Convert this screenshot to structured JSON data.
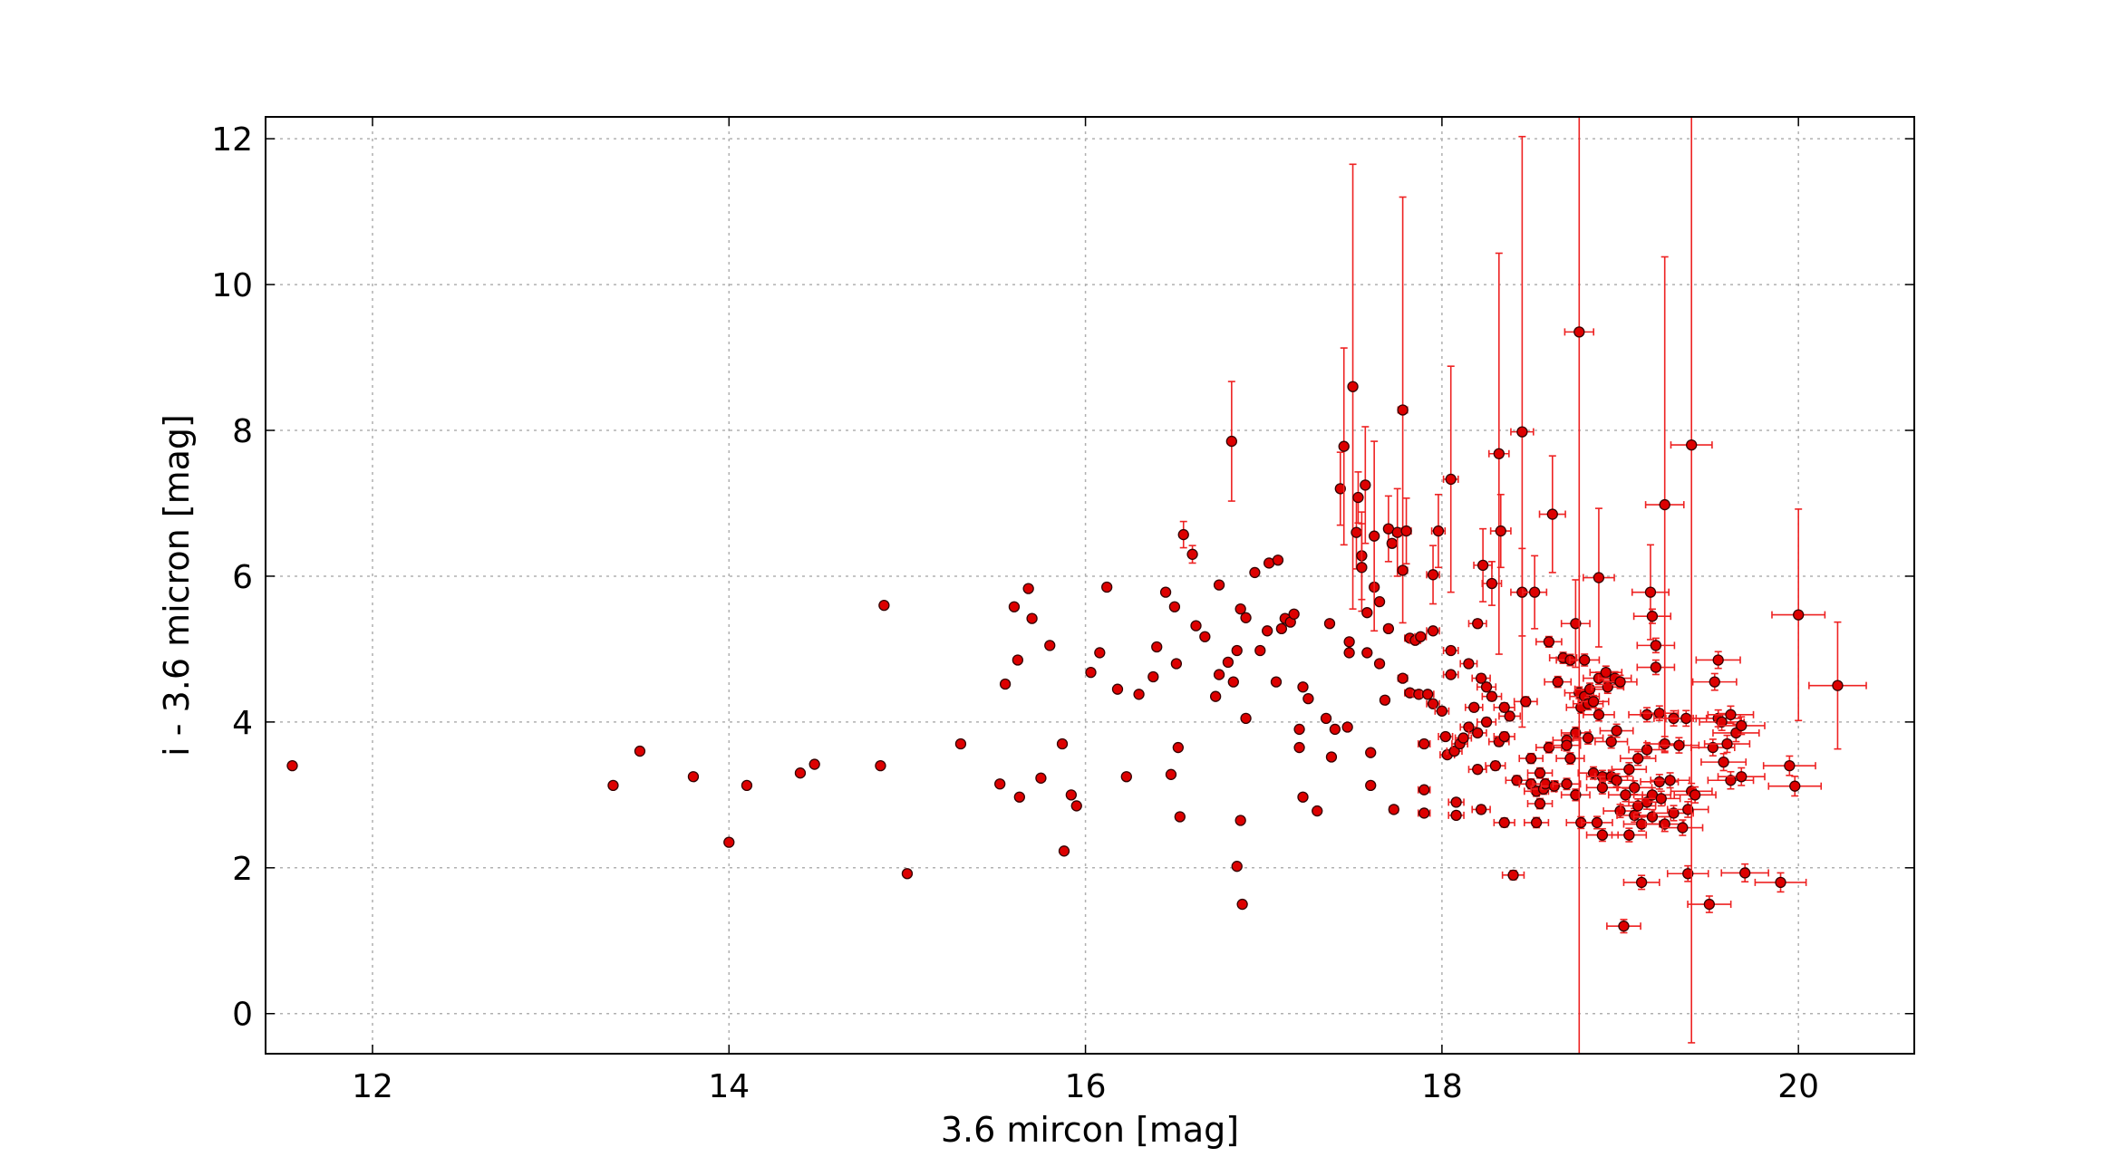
{
  "chart_data": {
    "type": "scatter",
    "title": "",
    "xlabel": "3.6 mircon [mag]",
    "ylabel": "i - 3.6 micron [mag]",
    "xlim": [
      11.4,
      20.65
    ],
    "ylim": [
      -0.55,
      12.3
    ],
    "xticks": [
      12,
      14,
      16,
      18,
      20
    ],
    "yticks": [
      0,
      2,
      4,
      6,
      8,
      10,
      12
    ],
    "xtick_labels": [
      "12",
      "14",
      "16",
      "18",
      "20"
    ],
    "ytick_labels": [
      "0",
      "2",
      "4",
      "6",
      "8",
      "10",
      "12"
    ],
    "grid": true,
    "marker_color": "#dd0000",
    "marker_edge_color": "#330000",
    "errorbar_color": "#ee2222",
    "points": [
      {
        "x": 11.55,
        "y": 3.4
      },
      {
        "x": 13.35,
        "y": 3.13
      },
      {
        "x": 13.5,
        "y": 3.6
      },
      {
        "x": 13.8,
        "y": 3.25
      },
      {
        "x": 14.0,
        "y": 2.35
      },
      {
        "x": 14.1,
        "y": 3.13
      },
      {
        "x": 14.4,
        "y": 3.3
      },
      {
        "x": 14.48,
        "y": 3.42
      },
      {
        "x": 14.85,
        "y": 3.4
      },
      {
        "x": 14.87,
        "y": 5.6
      },
      {
        "x": 15.0,
        "y": 1.92
      },
      {
        "x": 15.3,
        "y": 3.7
      },
      {
        "x": 15.52,
        "y": 3.15
      },
      {
        "x": 15.55,
        "y": 4.52
      },
      {
        "x": 15.6,
        "y": 5.58
      },
      {
        "x": 15.62,
        "y": 4.85
      },
      {
        "x": 15.63,
        "y": 2.97
      },
      {
        "x": 15.68,
        "y": 5.83
      },
      {
        "x": 15.7,
        "y": 5.42
      },
      {
        "x": 15.75,
        "y": 3.23
      },
      {
        "x": 15.8,
        "y": 5.05
      },
      {
        "x": 15.87,
        "y": 3.7
      },
      {
        "x": 15.88,
        "y": 2.23
      },
      {
        "x": 15.92,
        "y": 3.0
      },
      {
        "x": 15.95,
        "y": 2.85
      },
      {
        "x": 16.03,
        "y": 4.68
      },
      {
        "x": 16.08,
        "y": 4.95
      },
      {
        "x": 16.12,
        "y": 5.85
      },
      {
        "x": 16.18,
        "y": 4.45
      },
      {
        "x": 16.23,
        "y": 3.25
      },
      {
        "x": 16.3,
        "y": 4.38
      },
      {
        "x": 16.38,
        "y": 4.62
      },
      {
        "x": 16.4,
        "y": 5.03
      },
      {
        "x": 16.45,
        "y": 5.78
      },
      {
        "x": 16.48,
        "y": 3.28
      },
      {
        "x": 16.5,
        "y": 5.58
      },
      {
        "x": 16.51,
        "y": 4.8
      },
      {
        "x": 16.52,
        "y": 3.65
      },
      {
        "x": 16.53,
        "y": 2.7
      },
      {
        "x": 16.55,
        "y": 6.57,
        "ey": 0.18
      },
      {
        "x": 16.6,
        "y": 6.3,
        "ey": 0.12
      },
      {
        "x": 16.62,
        "y": 5.32
      },
      {
        "x": 16.67,
        "y": 5.17
      },
      {
        "x": 16.73,
        "y": 4.35
      },
      {
        "x": 16.75,
        "y": 5.88
      },
      {
        "x": 16.75,
        "y": 4.65
      },
      {
        "x": 16.8,
        "y": 4.82
      },
      {
        "x": 16.82,
        "y": 7.85,
        "ey": 0.82
      },
      {
        "x": 16.83,
        "y": 4.55
      },
      {
        "x": 16.85,
        "y": 4.98
      },
      {
        "x": 16.85,
        "y": 2.02
      },
      {
        "x": 16.87,
        "y": 2.65
      },
      {
        "x": 16.87,
        "y": 5.55
      },
      {
        "x": 16.88,
        "y": 1.5
      },
      {
        "x": 16.9,
        "y": 5.43
      },
      {
        "x": 16.9,
        "y": 4.05
      },
      {
        "x": 16.95,
        "y": 6.05
      },
      {
        "x": 16.98,
        "y": 4.98
      },
      {
        "x": 17.02,
        "y": 5.25
      },
      {
        "x": 17.03,
        "y": 6.18
      },
      {
        "x": 17.07,
        "y": 4.55
      },
      {
        "x": 17.08,
        "y": 6.22
      },
      {
        "x": 17.1,
        "y": 5.28
      },
      {
        "x": 17.12,
        "y": 5.42
      },
      {
        "x": 17.15,
        "y": 5.37
      },
      {
        "x": 17.17,
        "y": 5.48
      },
      {
        "x": 17.2,
        "y": 3.9
      },
      {
        "x": 17.2,
        "y": 3.65
      },
      {
        "x": 17.22,
        "y": 4.48
      },
      {
        "x": 17.22,
        "y": 2.97
      },
      {
        "x": 17.25,
        "y": 4.32
      },
      {
        "x": 17.3,
        "y": 2.78
      },
      {
        "x": 17.35,
        "y": 4.05
      },
      {
        "x": 17.37,
        "y": 5.35
      },
      {
        "x": 17.38,
        "y": 3.52
      },
      {
        "x": 17.4,
        "y": 3.9
      },
      {
        "x": 17.43,
        "y": 7.2,
        "ey": 0.5
      },
      {
        "x": 17.45,
        "y": 7.78,
        "ey": 1.35
      },
      {
        "x": 17.47,
        "y": 3.93
      },
      {
        "x": 17.48,
        "y": 5.1
      },
      {
        "x": 17.48,
        "y": 4.95
      },
      {
        "x": 17.5,
        "y": 8.6,
        "ey": 3.05
      },
      {
        "x": 17.52,
        "y": 6.6,
        "ey": 0.5
      },
      {
        "x": 17.53,
        "y": 7.08,
        "ey": 0.35
      },
      {
        "x": 17.55,
        "y": 6.28,
        "ey": 0.6
      },
      {
        "x": 17.55,
        "y": 6.12,
        "ey": 0.6
      },
      {
        "x": 17.57,
        "y": 7.25,
        "ey": 0.8
      },
      {
        "x": 17.58,
        "y": 5.5
      },
      {
        "x": 17.58,
        "y": 4.95
      },
      {
        "x": 17.6,
        "y": 3.58
      },
      {
        "x": 17.6,
        "y": 3.13
      },
      {
        "x": 17.62,
        "y": 5.85
      },
      {
        "x": 17.62,
        "y": 6.55,
        "ey": 1.3
      },
      {
        "x": 17.65,
        "y": 5.65
      },
      {
        "x": 17.65,
        "y": 4.8
      },
      {
        "x": 17.68,
        "y": 4.3
      },
      {
        "x": 17.7,
        "y": 6.65,
        "ey": 0.45
      },
      {
        "x": 17.7,
        "y": 5.28
      },
      {
        "x": 17.72,
        "y": 6.45
      },
      {
        "x": 17.73,
        "y": 2.8
      },
      {
        "x": 17.75,
        "y": 6.6,
        "ey": 0.6
      },
      {
        "x": 17.78,
        "y": 8.28,
        "ey": 2.92
      },
      {
        "x": 17.78,
        "y": 6.08
      },
      {
        "x": 17.78,
        "y": 4.6
      },
      {
        "x": 17.8,
        "y": 6.62,
        "ey": 0.45
      },
      {
        "x": 17.82,
        "y": 5.15
      },
      {
        "x": 17.82,
        "y": 4.4
      },
      {
        "x": 17.85,
        "y": 5.12
      },
      {
        "x": 17.87,
        "y": 4.38
      },
      {
        "x": 17.88,
        "y": 5.17
      },
      {
        "x": 17.9,
        "y": 3.7
      },
      {
        "x": 17.9,
        "y": 3.07
      },
      {
        "x": 17.9,
        "y": 2.75
      },
      {
        "x": 17.92,
        "y": 4.38
      },
      {
        "x": 17.95,
        "y": 6.02,
        "ey": 0.4
      },
      {
        "x": 17.95,
        "y": 5.25
      },
      {
        "x": 17.95,
        "y": 4.25
      },
      {
        "x": 17.98,
        "y": 6.62,
        "ey": 0.5
      },
      {
        "x": 18.0,
        "y": 4.15
      },
      {
        "x": 18.02,
        "y": 3.8
      },
      {
        "x": 18.03,
        "y": 3.55
      },
      {
        "x": 18.05,
        "y": 7.33,
        "ey": 1.55
      },
      {
        "x": 18.05,
        "y": 4.98
      },
      {
        "x": 18.05,
        "y": 4.65
      },
      {
        "x": 18.07,
        "y": 3.6
      },
      {
        "x": 18.08,
        "y": 2.9
      },
      {
        "x": 18.08,
        "y": 2.72
      },
      {
        "x": 18.1,
        "y": 3.7
      },
      {
        "x": 18.12,
        "y": 3.78
      },
      {
        "x": 18.15,
        "y": 4.8
      },
      {
        "x": 18.15,
        "y": 3.93
      },
      {
        "x": 18.18,
        "y": 4.2
      },
      {
        "x": 18.2,
        "y": 5.35
      },
      {
        "x": 18.2,
        "y": 3.85
      },
      {
        "x": 18.2,
        "y": 3.35
      },
      {
        "x": 18.22,
        "y": 4.6
      },
      {
        "x": 18.22,
        "y": 2.8
      },
      {
        "x": 18.23,
        "y": 6.15,
        "ey": 0.5
      },
      {
        "x": 18.25,
        "y": 4.48
      },
      {
        "x": 18.25,
        "y": 4.0
      },
      {
        "x": 18.28,
        "y": 5.9,
        "ey": 0.3
      },
      {
        "x": 18.28,
        "y": 4.35
      },
      {
        "x": 18.3,
        "y": 3.4
      },
      {
        "x": 18.32,
        "y": 7.68,
        "ey": 2.75
      },
      {
        "x": 18.32,
        "y": 3.73
      },
      {
        "x": 18.33,
        "y": 6.62,
        "ey": 0.5
      },
      {
        "x": 18.35,
        "y": 4.2
      },
      {
        "x": 18.35,
        "y": 3.8
      },
      {
        "x": 18.35,
        "y": 2.62
      },
      {
        "x": 18.38,
        "y": 4.08
      },
      {
        "x": 18.4,
        "y": 1.9
      },
      {
        "x": 18.42,
        "y": 3.2
      },
      {
        "x": 18.45,
        "y": 7.98,
        "ey": 4.05
      },
      {
        "x": 18.45,
        "y": 5.78,
        "ey": 0.6
      },
      {
        "x": 18.47,
        "y": 4.28
      },
      {
        "x": 18.5,
        "y": 3.15
      },
      {
        "x": 18.5,
        "y": 3.5
      },
      {
        "x": 18.52,
        "y": 5.78,
        "ey": 0.5
      },
      {
        "x": 18.53,
        "y": 3.05
      },
      {
        "x": 18.53,
        "y": 2.62
      },
      {
        "x": 18.55,
        "y": 3.3
      },
      {
        "x": 18.55,
        "y": 2.88
      },
      {
        "x": 18.57,
        "y": 3.08
      },
      {
        "x": 18.58,
        "y": 3.15
      },
      {
        "x": 18.6,
        "y": 5.1
      },
      {
        "x": 18.6,
        "y": 3.65
      },
      {
        "x": 18.62,
        "y": 6.85,
        "ey": 0.8
      },
      {
        "x": 18.63,
        "y": 3.12
      },
      {
        "x": 18.65,
        "y": 4.55
      },
      {
        "x": 18.68,
        "y": 4.88
      },
      {
        "x": 18.7,
        "y": 3.75
      },
      {
        "x": 18.7,
        "y": 3.68
      },
      {
        "x": 18.7,
        "y": 3.15
      },
      {
        "x": 18.72,
        "y": 4.85
      },
      {
        "x": 18.72,
        "y": 3.5
      },
      {
        "x": 18.75,
        "y": 5.35,
        "ey": 0.6
      },
      {
        "x": 18.75,
        "y": 3.85
      },
      {
        "x": 18.75,
        "y": 3.0
      },
      {
        "x": 18.77,
        "y": 9.35,
        "ey": 9.9
      },
      {
        "x": 18.77,
        "y": 4.4
      },
      {
        "x": 18.78,
        "y": 4.2
      },
      {
        "x": 18.78,
        "y": 2.62
      },
      {
        "x": 18.8,
        "y": 4.85
      },
      {
        "x": 18.8,
        "y": 4.35
      },
      {
        "x": 18.82,
        "y": 4.25
      },
      {
        "x": 18.82,
        "y": 3.78
      },
      {
        "x": 18.83,
        "y": 4.45
      },
      {
        "x": 18.85,
        "y": 4.28
      },
      {
        "x": 18.85,
        "y": 3.3
      },
      {
        "x": 18.87,
        "y": 2.62
      },
      {
        "x": 18.88,
        "y": 5.98,
        "ey": 0.95
      },
      {
        "x": 18.88,
        "y": 4.6
      },
      {
        "x": 18.88,
        "y": 4.1
      },
      {
        "x": 18.9,
        "y": 3.25
      },
      {
        "x": 18.9,
        "y": 3.1
      },
      {
        "x": 18.9,
        "y": 2.45
      },
      {
        "x": 18.92,
        "y": 4.68
      },
      {
        "x": 18.93,
        "y": 4.48
      },
      {
        "x": 18.95,
        "y": 3.73
      },
      {
        "x": 18.95,
        "y": 3.25
      },
      {
        "x": 18.97,
        "y": 4.6
      },
      {
        "x": 18.98,
        "y": 3.88
      },
      {
        "x": 18.98,
        "y": 3.2
      },
      {
        "x": 19.0,
        "y": 4.55
      },
      {
        "x": 19.0,
        "y": 2.78
      },
      {
        "x": 19.02,
        "y": 1.2
      },
      {
        "x": 19.03,
        "y": 3.0
      },
      {
        "x": 19.05,
        "y": 3.35
      },
      {
        "x": 19.05,
        "y": 2.45
      },
      {
        "x": 19.08,
        "y": 3.1
      },
      {
        "x": 19.08,
        "y": 2.72
      },
      {
        "x": 19.1,
        "y": 3.5
      },
      {
        "x": 19.1,
        "y": 2.85
      },
      {
        "x": 19.12,
        "y": 1.8
      },
      {
        "x": 19.12,
        "y": 2.6
      },
      {
        "x": 19.15,
        "y": 4.1
      },
      {
        "x": 19.15,
        "y": 3.62
      },
      {
        "x": 19.15,
        "y": 2.9
      },
      {
        "x": 19.17,
        "y": 5.78,
        "ey": 0.65
      },
      {
        "x": 19.18,
        "y": 5.45
      },
      {
        "x": 19.18,
        "y": 3.0
      },
      {
        "x": 19.18,
        "y": 2.7
      },
      {
        "x": 19.2,
        "y": 5.05
      },
      {
        "x": 19.2,
        "y": 4.75
      },
      {
        "x": 19.22,
        "y": 4.12
      },
      {
        "x": 19.22,
        "y": 3.18
      },
      {
        "x": 19.23,
        "y": 2.95
      },
      {
        "x": 19.25,
        "y": 6.98,
        "ey": 3.4
      },
      {
        "x": 19.25,
        "y": 3.7
      },
      {
        "x": 19.25,
        "y": 2.6
      },
      {
        "x": 19.28,
        "y": 3.2
      },
      {
        "x": 19.3,
        "y": 4.05
      },
      {
        "x": 19.3,
        "y": 2.75
      },
      {
        "x": 19.33,
        "y": 3.68
      },
      {
        "x": 19.35,
        "y": 2.55
      },
      {
        "x": 19.37,
        "y": 4.05
      },
      {
        "x": 19.38,
        "y": 1.92
      },
      {
        "x": 19.38,
        "y": 2.8
      },
      {
        "x": 19.4,
        "y": 7.8,
        "ey": 8.2
      },
      {
        "x": 19.4,
        "y": 3.05
      },
      {
        "x": 19.42,
        "y": 3.0
      },
      {
        "x": 19.5,
        "y": 1.5
      },
      {
        "x": 19.52,
        "y": 3.65
      },
      {
        "x": 19.53,
        "y": 4.55
      },
      {
        "x": 19.55,
        "y": 4.85
      },
      {
        "x": 19.55,
        "y": 4.05
      },
      {
        "x": 19.57,
        "y": 4.0
      },
      {
        "x": 19.58,
        "y": 3.45
      },
      {
        "x": 19.6,
        "y": 3.7
      },
      {
        "x": 19.62,
        "y": 3.2
      },
      {
        "x": 19.62,
        "y": 4.1
      },
      {
        "x": 19.65,
        "y": 3.85
      },
      {
        "x": 19.68,
        "y": 3.95
      },
      {
        "x": 19.68,
        "y": 3.25
      },
      {
        "x": 19.7,
        "y": 1.93
      },
      {
        "x": 19.9,
        "y": 1.8
      },
      {
        "x": 19.95,
        "y": 3.4
      },
      {
        "x": 19.98,
        "y": 3.12
      },
      {
        "x": 20.0,
        "y": 5.47,
        "ey": 1.45
      },
      {
        "x": 20.22,
        "y": 4.5,
        "ey": 0.87
      }
    ]
  }
}
